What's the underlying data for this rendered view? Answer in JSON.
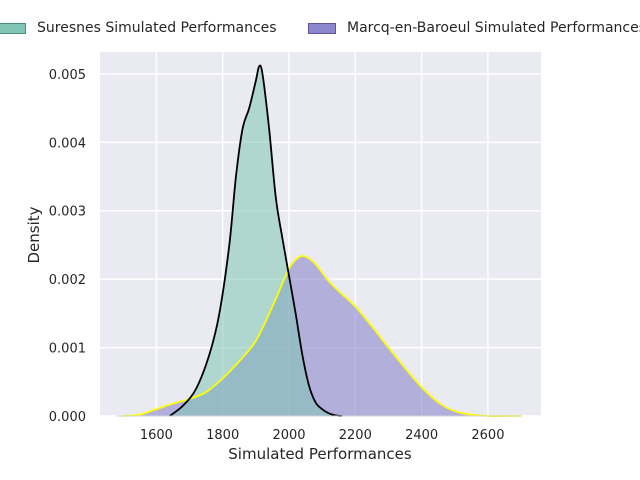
{
  "chart_data": {
    "type": "area",
    "title": "",
    "xlabel": "Simulated Performances",
    "ylabel": "Density",
    "xlim": [
      1430,
      2760
    ],
    "ylim": [
      0,
      0.00532
    ],
    "xticks": [
      1600,
      1800,
      2000,
      2200,
      2400,
      2600
    ],
    "xtick_labels": [
      "1600",
      "1800",
      "2000",
      "2200",
      "2400",
      "2600"
    ],
    "yticks": [
      0,
      0.001,
      0.002,
      0.003,
      0.004,
      0.005
    ],
    "ytick_labels": [
      "0.000",
      "0.001",
      "0.002",
      "0.003",
      "0.004",
      "0.005"
    ],
    "grid": true,
    "legend_position": "top",
    "background": "#eaeaf2",
    "series": [
      {
        "name": "Suresnes Simulated Performances",
        "fill_color": "#7fc4b4",
        "line_color": "#000000",
        "x": [
          1640,
          1680,
          1720,
          1760,
          1790,
          1820,
          1840,
          1860,
          1880,
          1900,
          1910,
          1920,
          1940,
          1960,
          1980,
          2000,
          2020,
          2040,
          2060,
          2080,
          2100,
          2120,
          2140,
          2160
        ],
        "y": [
          0,
          0.00015,
          0.0004,
          0.0009,
          0.0015,
          0.0025,
          0.0035,
          0.0042,
          0.0045,
          0.0049,
          0.00511,
          0.005,
          0.0042,
          0.0032,
          0.0026,
          0.00205,
          0.0015,
          0.0009,
          0.00045,
          0.0002,
          0.0001,
          4e-05,
          1e-05,
          0
        ]
      },
      {
        "name": "Marcq-en-Baroeul Simulated Performances",
        "fill_color": "#8c87cc",
        "line_color": "#ffff00",
        "x": [
          1500,
          1550,
          1600,
          1650,
          1700,
          1750,
          1800,
          1850,
          1900,
          1950,
          2000,
          2030,
          2050,
          2080,
          2120,
          2160,
          2200,
          2250,
          2300,
          2350,
          2400,
          2450,
          2500,
          2550,
          2600,
          2650,
          2700
        ],
        "y": [
          0,
          2e-05,
          0.0001,
          0.00018,
          0.00025,
          0.00035,
          0.00055,
          0.0008,
          0.0011,
          0.0016,
          0.00215,
          0.00232,
          0.00233,
          0.00222,
          0.00197,
          0.00178,
          0.0016,
          0.00131,
          0.001,
          0.0007,
          0.00042,
          0.0002,
          7e-05,
          2e-05,
          0,
          0,
          0
        ]
      }
    ]
  }
}
